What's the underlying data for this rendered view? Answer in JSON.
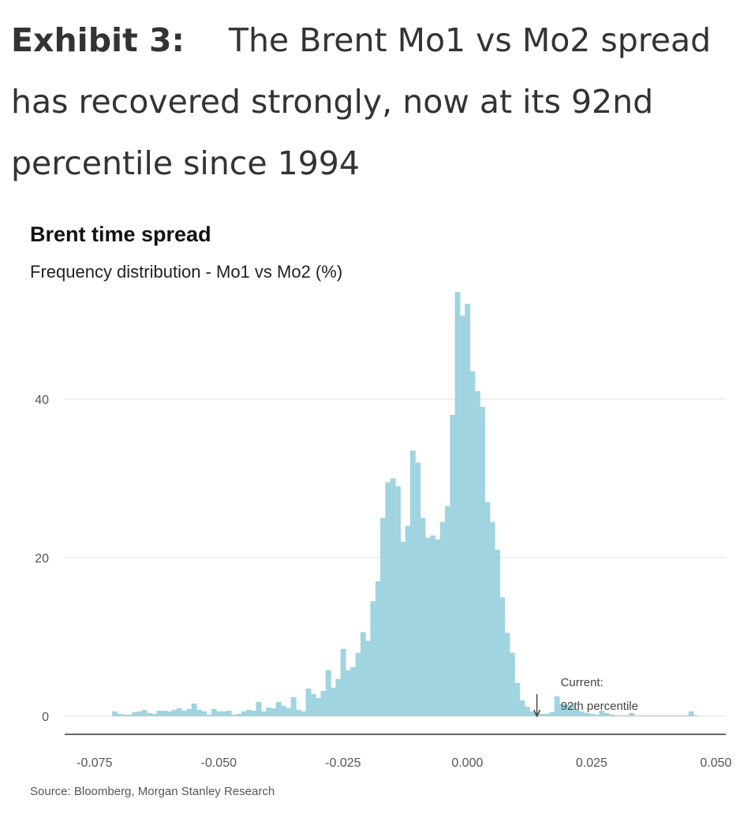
{
  "exhibit": {
    "label": "Exhibit 3:",
    "text": "The Brent Mo1 vs Mo2 spread has recovered strongly, now at its 92nd percentile since 1994"
  },
  "source": "Source: Bloomberg, Morgan Stanley Research",
  "colors": {
    "bars": "#9fd4e0",
    "grid": "#e2e2e2",
    "axis": "#333333"
  },
  "chart_data": {
    "type": "bar",
    "title": "Brent time spread",
    "subtitle": "Frequency distribution - Mo1 vs Mo2 (%)",
    "xlabel": "",
    "ylabel": "",
    "xlim": [
      -0.081,
      0.052
    ],
    "ylim": [
      0,
      56
    ],
    "xticks": [
      -0.075,
      -0.05,
      -0.025,
      0.0,
      0.025,
      0.05
    ],
    "xtick_labels": [
      "-0.075",
      "-0.050",
      "-0.025",
      "0.000",
      "0.025",
      "0.050"
    ],
    "yticks": [
      0,
      20,
      40
    ],
    "ytick_labels": [
      "0",
      "20",
      "40"
    ],
    "grid": true,
    "bin_width": 0.001,
    "bin_start": -0.0715,
    "values": [
      0.6,
      0.3,
      0.2,
      0.2,
      0.5,
      0.6,
      0.8,
      0.4,
      0.3,
      0.7,
      0.7,
      0.6,
      0.8,
      1.0,
      0.7,
      0.9,
      1.6,
      0.8,
      0.6,
      0.2,
      0.9,
      0.6,
      0.6,
      0.7,
      0.2,
      0.3,
      0.6,
      0.8,
      0.7,
      1.8,
      0.6,
      1.1,
      1.0,
      1.8,
      1.3,
      1.0,
      2.4,
      0.8,
      0.6,
      3.5,
      2.8,
      2.3,
      3.2,
      5.8,
      3.6,
      4.7,
      8.5,
      5.8,
      6.2,
      8.0,
      10.6,
      9.5,
      14.5,
      17.0,
      25.0,
      29.5,
      30.0,
      29.0,
      22.0,
      24.0,
      33.5,
      32.0,
      25.0,
      22.5,
      22.8,
      22.3,
      24.5,
      26.5,
      38.0,
      53.5,
      50.5,
      52.0,
      43.5,
      41.0,
      39.0,
      27.0,
      24.5,
      21.0,
      15.0,
      10.5,
      8.0,
      4.2,
      2.0,
      1.2,
      0.6,
      0.4,
      0.3,
      0.3,
      0.5,
      2.5,
      1.5,
      1.5,
      1.4,
      0.8,
      0.6,
      0.4,
      0.3,
      0.2,
      0.7,
      0.4,
      0.2,
      0.1,
      0.1,
      0.1,
      0.4,
      0.1,
      0.1,
      0.1,
      0.1,
      0.1,
      0.1,
      0.1,
      0.1,
      0.1,
      0.1,
      0.1,
      0.6,
      0.1
    ],
    "annotation": {
      "line1": "Current:",
      "line2": "92th percentile",
      "x": 0.014,
      "arrow": "down"
    }
  }
}
